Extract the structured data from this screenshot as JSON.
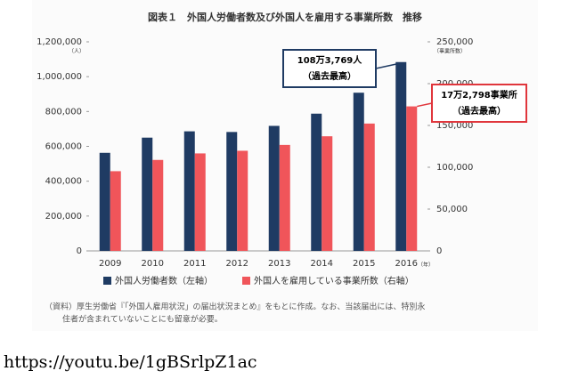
{
  "chart_data": {
    "type": "bar",
    "title": "図表１　外国人労働者数及び外国人を雇用する事業所数　推移",
    "y_unit": "（人）",
    "y2_unit": "（事業所数）",
    "x_unit": "（年）",
    "categories": [
      "2009",
      "2010",
      "2011",
      "2012",
      "2013",
      "2014",
      "2015",
      "2016"
    ],
    "series": [
      {
        "name": "外国人労働者数（左軸）",
        "color": "#1f3b63",
        "values": [
          562818,
          649982,
          686246,
          682450,
          717504,
          787627,
          907896,
          1083769
        ]
      },
      {
        "name": "外国人を雇用している事業所数（右軸）",
        "color": "#f0555a",
        "axis": "y2",
        "values": [
          95294,
          108760,
          116561,
          119731,
          126729,
          137053,
          152261,
          172798
        ]
      }
    ],
    "ylim": [
      0,
      1200000
    ],
    "yticks": [
      0,
      {
        "value": 200000,
        "label": "200,000"
      },
      {
        "value": 400000,
        "label": "400,000"
      },
      {
        "value": 600000,
        "label": "600,000"
      },
      {
        "value": 800000,
        "label": "800,000"
      },
      {
        "value": 1000000,
        "label": "1,000,000"
      },
      {
        "value": 1200000,
        "label": "1,200,000"
      }
    ],
    "y2lim": [
      0,
      250000
    ],
    "y2ticks": [
      0,
      {
        "value": 50000,
        "label": "50,000"
      },
      {
        "value": 100000,
        "label": "100,000"
      },
      {
        "value": 150000,
        "label": "150,000"
      },
      {
        "value": 200000,
        "label": "200,000"
      },
      {
        "value": 250000,
        "label": "250,000"
      }
    ],
    "grid": false,
    "legend": "bottom",
    "annotations": [
      {
        "lines": [
          "108万3,769人",
          "（過去最高）"
        ],
        "color": "#1f3b63"
      },
      {
        "lines": [
          "17万2,798事業所",
          "（過去最高）"
        ],
        "color": "#e0363c"
      }
    ],
    "note": [
      "（資料）厚生労働省『「外国人雇用状況」の届出状況まとめ』をもとに作成。なお、当該届出には、特別永",
      "住者が含まれていないことにも留意が必要。"
    ]
  },
  "footer": {
    "url": "https://youtu.be/1gBSrlpZ1ac"
  }
}
